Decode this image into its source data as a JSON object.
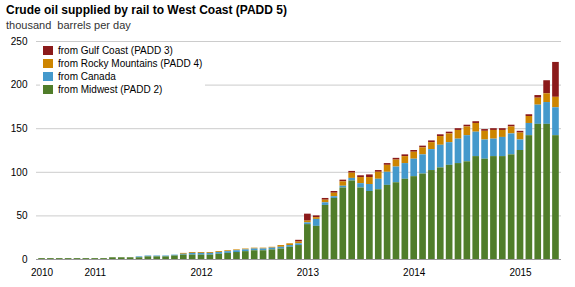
{
  "chart_data": {
    "type": "bar",
    "stacked": true,
    "title": "Crude oil supplied by rail to West Coast (PADD 5)",
    "subtitle": "thousand  barrels per day",
    "categories": [
      "2010",
      null,
      null,
      null,
      null,
      null,
      "2011",
      null,
      null,
      null,
      null,
      null,
      null,
      null,
      null,
      null,
      null,
      null,
      "2012",
      null,
      null,
      null,
      null,
      null,
      null,
      null,
      null,
      null,
      null,
      null,
      "2013",
      null,
      null,
      null,
      null,
      null,
      null,
      null,
      null,
      null,
      null,
      null,
      "2014",
      null,
      null,
      null,
      null,
      null,
      null,
      null,
      null,
      null,
      null,
      null,
      "2015",
      null,
      null,
      null,
      null
    ],
    "series": [
      {
        "name": "from Gulf Coast (PADD 3)",
        "color": "#8B1A1A",
        "values": [
          0,
          0,
          0,
          0,
          0,
          0,
          0,
          0,
          0,
          0,
          0,
          0,
          0,
          0,
          0,
          0,
          0,
          0,
          0,
          0,
          0,
          0,
          0,
          0,
          0,
          0,
          0,
          0,
          0,
          2,
          8,
          2,
          2,
          2,
          2,
          2,
          2,
          3,
          2,
          2,
          2,
          2,
          2,
          2,
          2,
          2,
          2,
          2,
          2,
          2,
          2,
          2,
          2,
          2,
          2,
          2,
          3,
          15,
          40
        ]
      },
      {
        "name": "from Rocky Mountains (PADD 4)",
        "color": "#CD8500",
        "values": [
          0,
          0,
          0,
          0,
          0,
          0,
          0,
          0,
          0,
          0,
          0,
          0,
          0,
          0,
          0,
          0,
          1,
          1,
          1,
          1,
          1,
          1,
          1,
          1,
          1,
          1,
          1,
          2,
          2,
          2,
          2,
          2,
          3,
          4,
          5,
          6,
          7,
          8,
          8,
          8,
          8,
          8,
          8,
          8,
          8,
          10,
          10,
          10,
          10,
          10,
          10,
          10,
          8,
          8,
          8,
          8,
          8,
          10,
          12
        ]
      },
      {
        "name": "from Canada",
        "color": "#4499CC",
        "values": [
          0,
          0,
          0,
          0,
          0,
          0,
          0,
          0,
          0,
          0,
          0,
          1,
          1,
          1,
          1,
          1,
          1,
          2,
          2,
          2,
          2,
          2,
          2,
          2,
          2,
          2,
          2,
          2,
          2,
          2,
          2,
          8,
          3,
          2,
          2,
          3,
          5,
          8,
          12,
          15,
          18,
          18,
          20,
          22,
          24,
          26,
          26,
          28,
          30,
          28,
          22,
          20,
          22,
          24,
          12,
          14,
          22,
          25,
          32
        ]
      },
      {
        "name": "from Midwest (PADD 2)",
        "color": "#507D2A",
        "values": [
          1,
          1,
          1,
          1,
          1,
          1,
          1,
          1,
          2,
          2,
          2,
          2,
          3,
          3,
          3,
          4,
          5,
          5,
          5,
          5,
          6,
          7,
          8,
          9,
          10,
          10,
          11,
          12,
          14,
          16,
          40,
          38,
          62,
          70,
          82,
          90,
          82,
          78,
          80,
          85,
          88,
          92,
          95,
          98,
          102,
          105,
          108,
          110,
          112,
          118,
          115,
          118,
          118,
          120,
          125,
          142,
          155,
          155,
          142
        ]
      }
    ],
    "ylim": [
      0,
      250
    ],
    "yticks": [
      0,
      50,
      100,
      150,
      200,
      250
    ],
    "grid": true,
    "legend": "upper left"
  }
}
